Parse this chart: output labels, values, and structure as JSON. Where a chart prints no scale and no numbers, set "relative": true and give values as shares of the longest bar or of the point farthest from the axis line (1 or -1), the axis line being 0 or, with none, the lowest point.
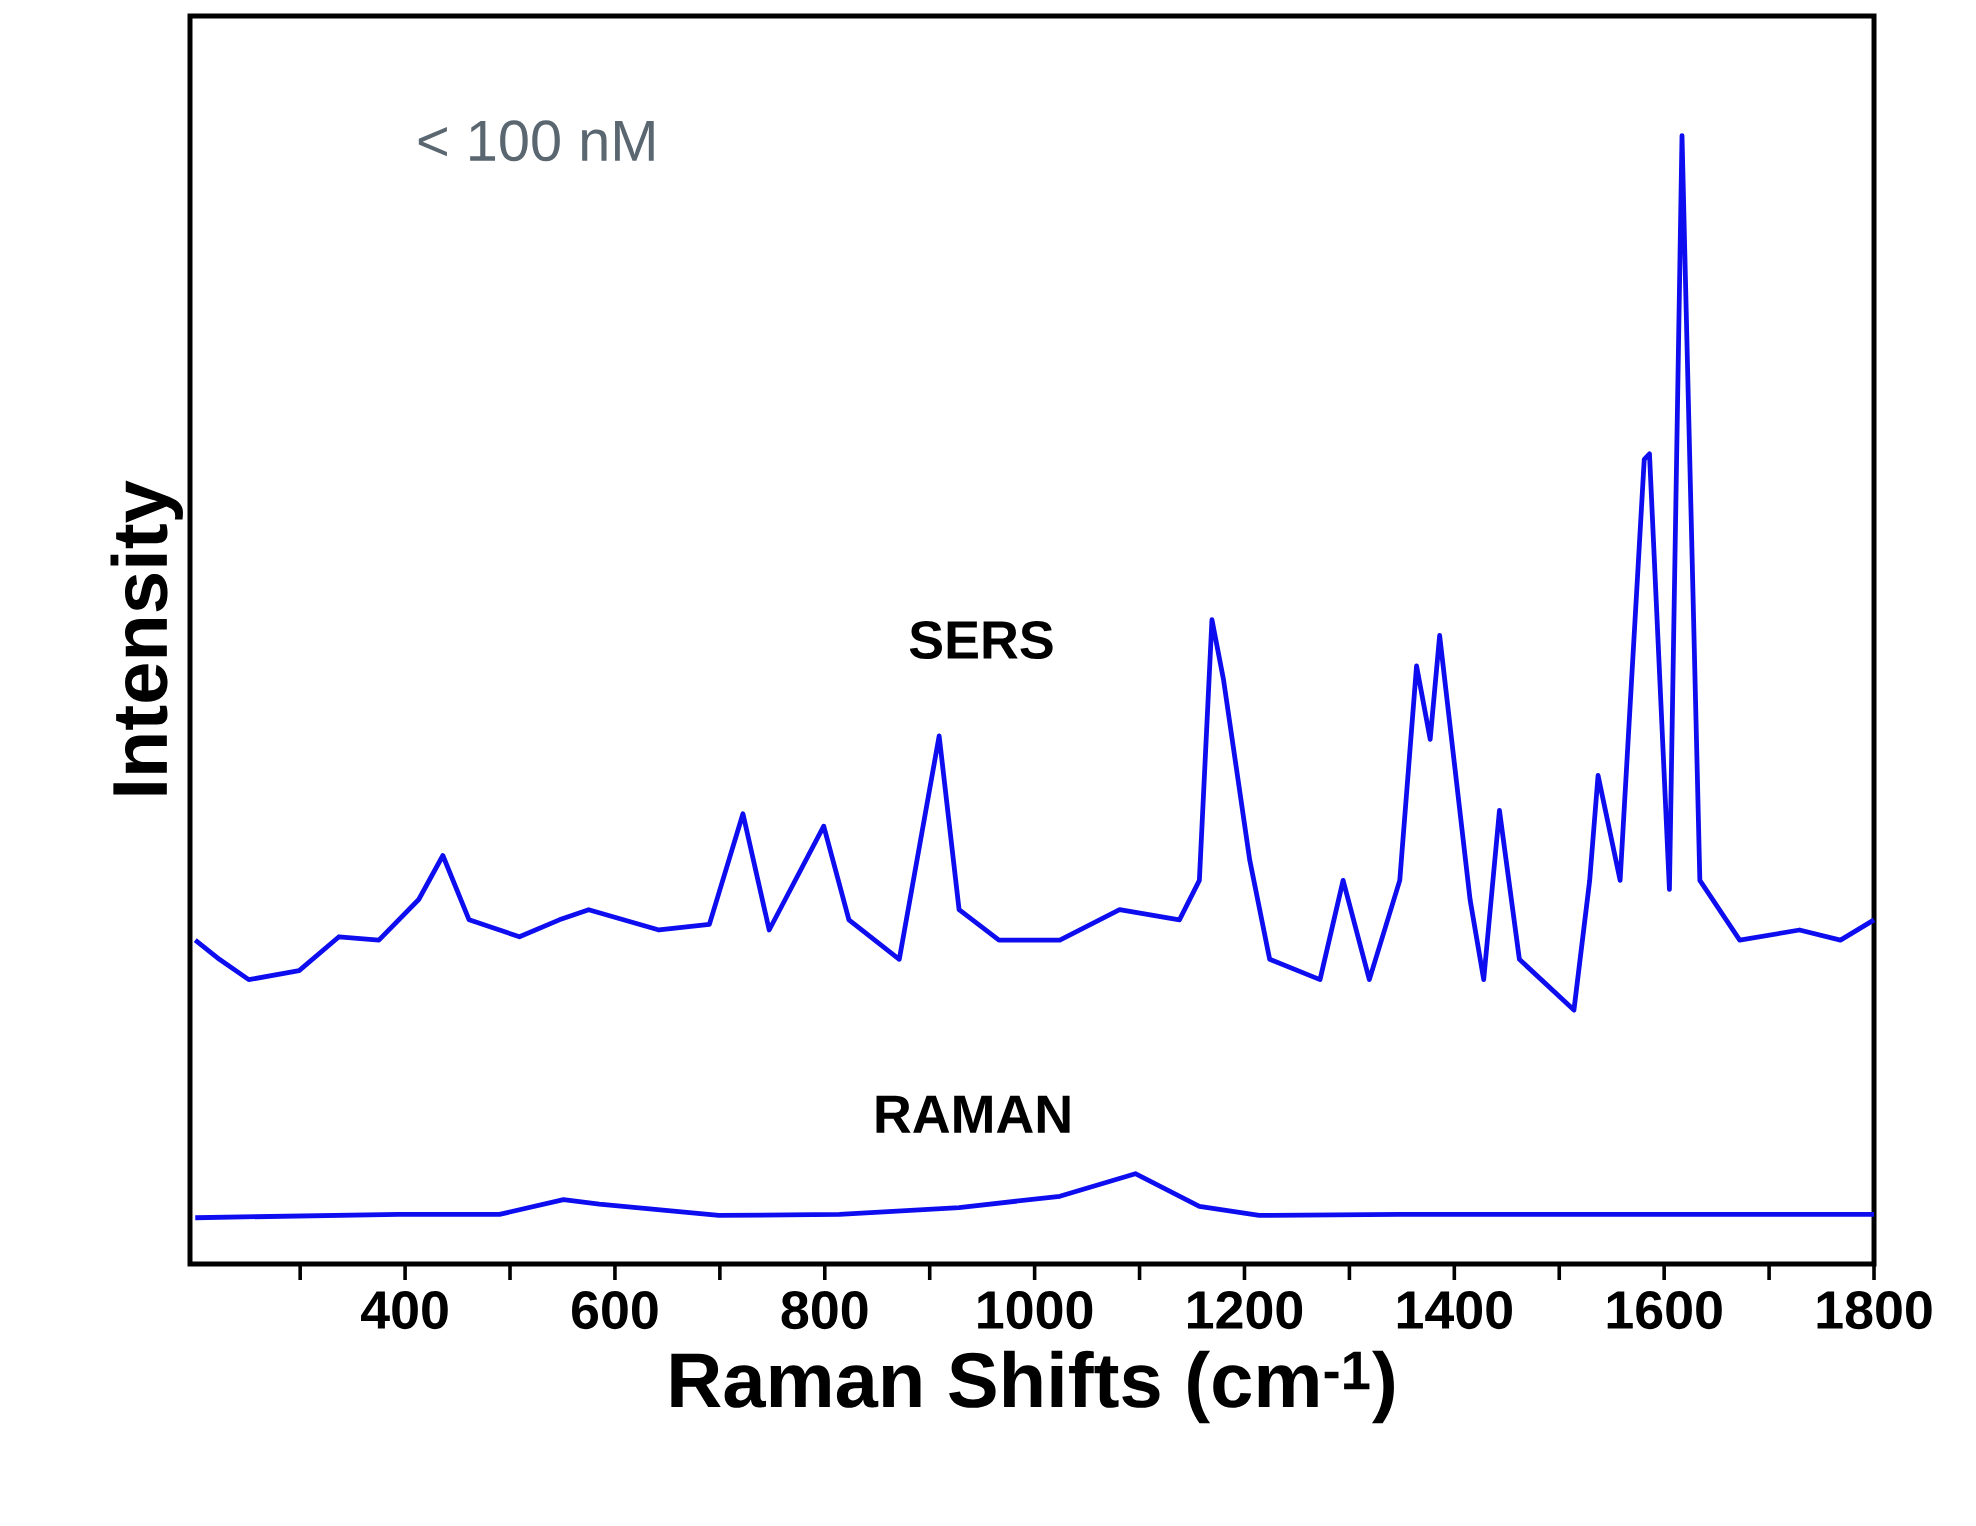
{
  "chart_data": {
    "type": "line",
    "relative": true,
    "xlabel": "Raman Shifts (cm$^{-1}$)",
    "ylabel": "Intensity",
    "annotations": [
      "< 100 nM"
    ],
    "xlim": [
      195,
      1800
    ],
    "xticks": [
      {
        "value": 300,
        "label": null
      },
      400,
      {
        "value": 500,
        "label": null
      },
      600,
      {
        "value": 700,
        "label": null
      },
      800,
      {
        "value": 900,
        "label": null
      },
      1000,
      {
        "value": 1100,
        "label": null
      },
      1200,
      {
        "value": 1300,
        "label": null
      },
      1400,
      {
        "value": 1500,
        "label": null
      },
      1600,
      {
        "value": 1700,
        "label": null
      },
      1800
    ],
    "series": [
      {
        "name": "SERS",
        "color": "#0d0df0",
        "x": [
          200,
          223,
          251,
          299,
          337,
          375,
          413,
          436,
          461,
          509,
          547,
          575,
          642,
          690,
          722,
          747,
          799,
          823,
          871,
          909,
          928,
          966,
          1024,
          1081,
          1138,
          1157,
          1169,
          1180,
          1205,
          1224,
          1272,
          1294,
          1319,
          1348,
          1364,
          1377,
          1386,
          1415,
          1428,
          1443,
          1462,
          1514,
          1529,
          1537,
          1558,
          1581,
          1586,
          1605,
          1617,
          1634,
          1672,
          1729,
          1768,
          1800
        ],
        "values": [
          0.287,
          0.27,
          0.252,
          0.26,
          0.29,
          0.287,
          0.323,
          0.362,
          0.305,
          0.29,
          0.305,
          0.314,
          0.296,
          0.301,
          0.399,
          0.296,
          0.388,
          0.305,
          0.27,
          0.468,
          0.314,
          0.287,
          0.287,
          0.314,
          0.305,
          0.34,
          0.571,
          0.518,
          0.358,
          0.27,
          0.252,
          0.34,
          0.252,
          0.34,
          0.53,
          0.465,
          0.557,
          0.323,
          0.252,
          0.402,
          0.27,
          0.225,
          0.34,
          0.433,
          0.34,
          0.713,
          0.718,
          0.332,
          1.0,
          0.34,
          0.287,
          0.296,
          0.287,
          0.305
        ]
      },
      {
        "name": "RAMAN",
        "color": "#0d0df0",
        "x": [
          200,
          394,
          490,
          551,
          585,
          699,
          814,
          928,
          1024,
          1096,
          1157,
          1214,
          1348,
          1539,
          1800
        ],
        "values": [
          0.041,
          0.044,
          0.044,
          0.057,
          0.053,
          0.043,
          0.044,
          0.05,
          0.06,
          0.08,
          0.051,
          0.043,
          0.044,
          0.044,
          0.044
        ]
      }
    ]
  }
}
